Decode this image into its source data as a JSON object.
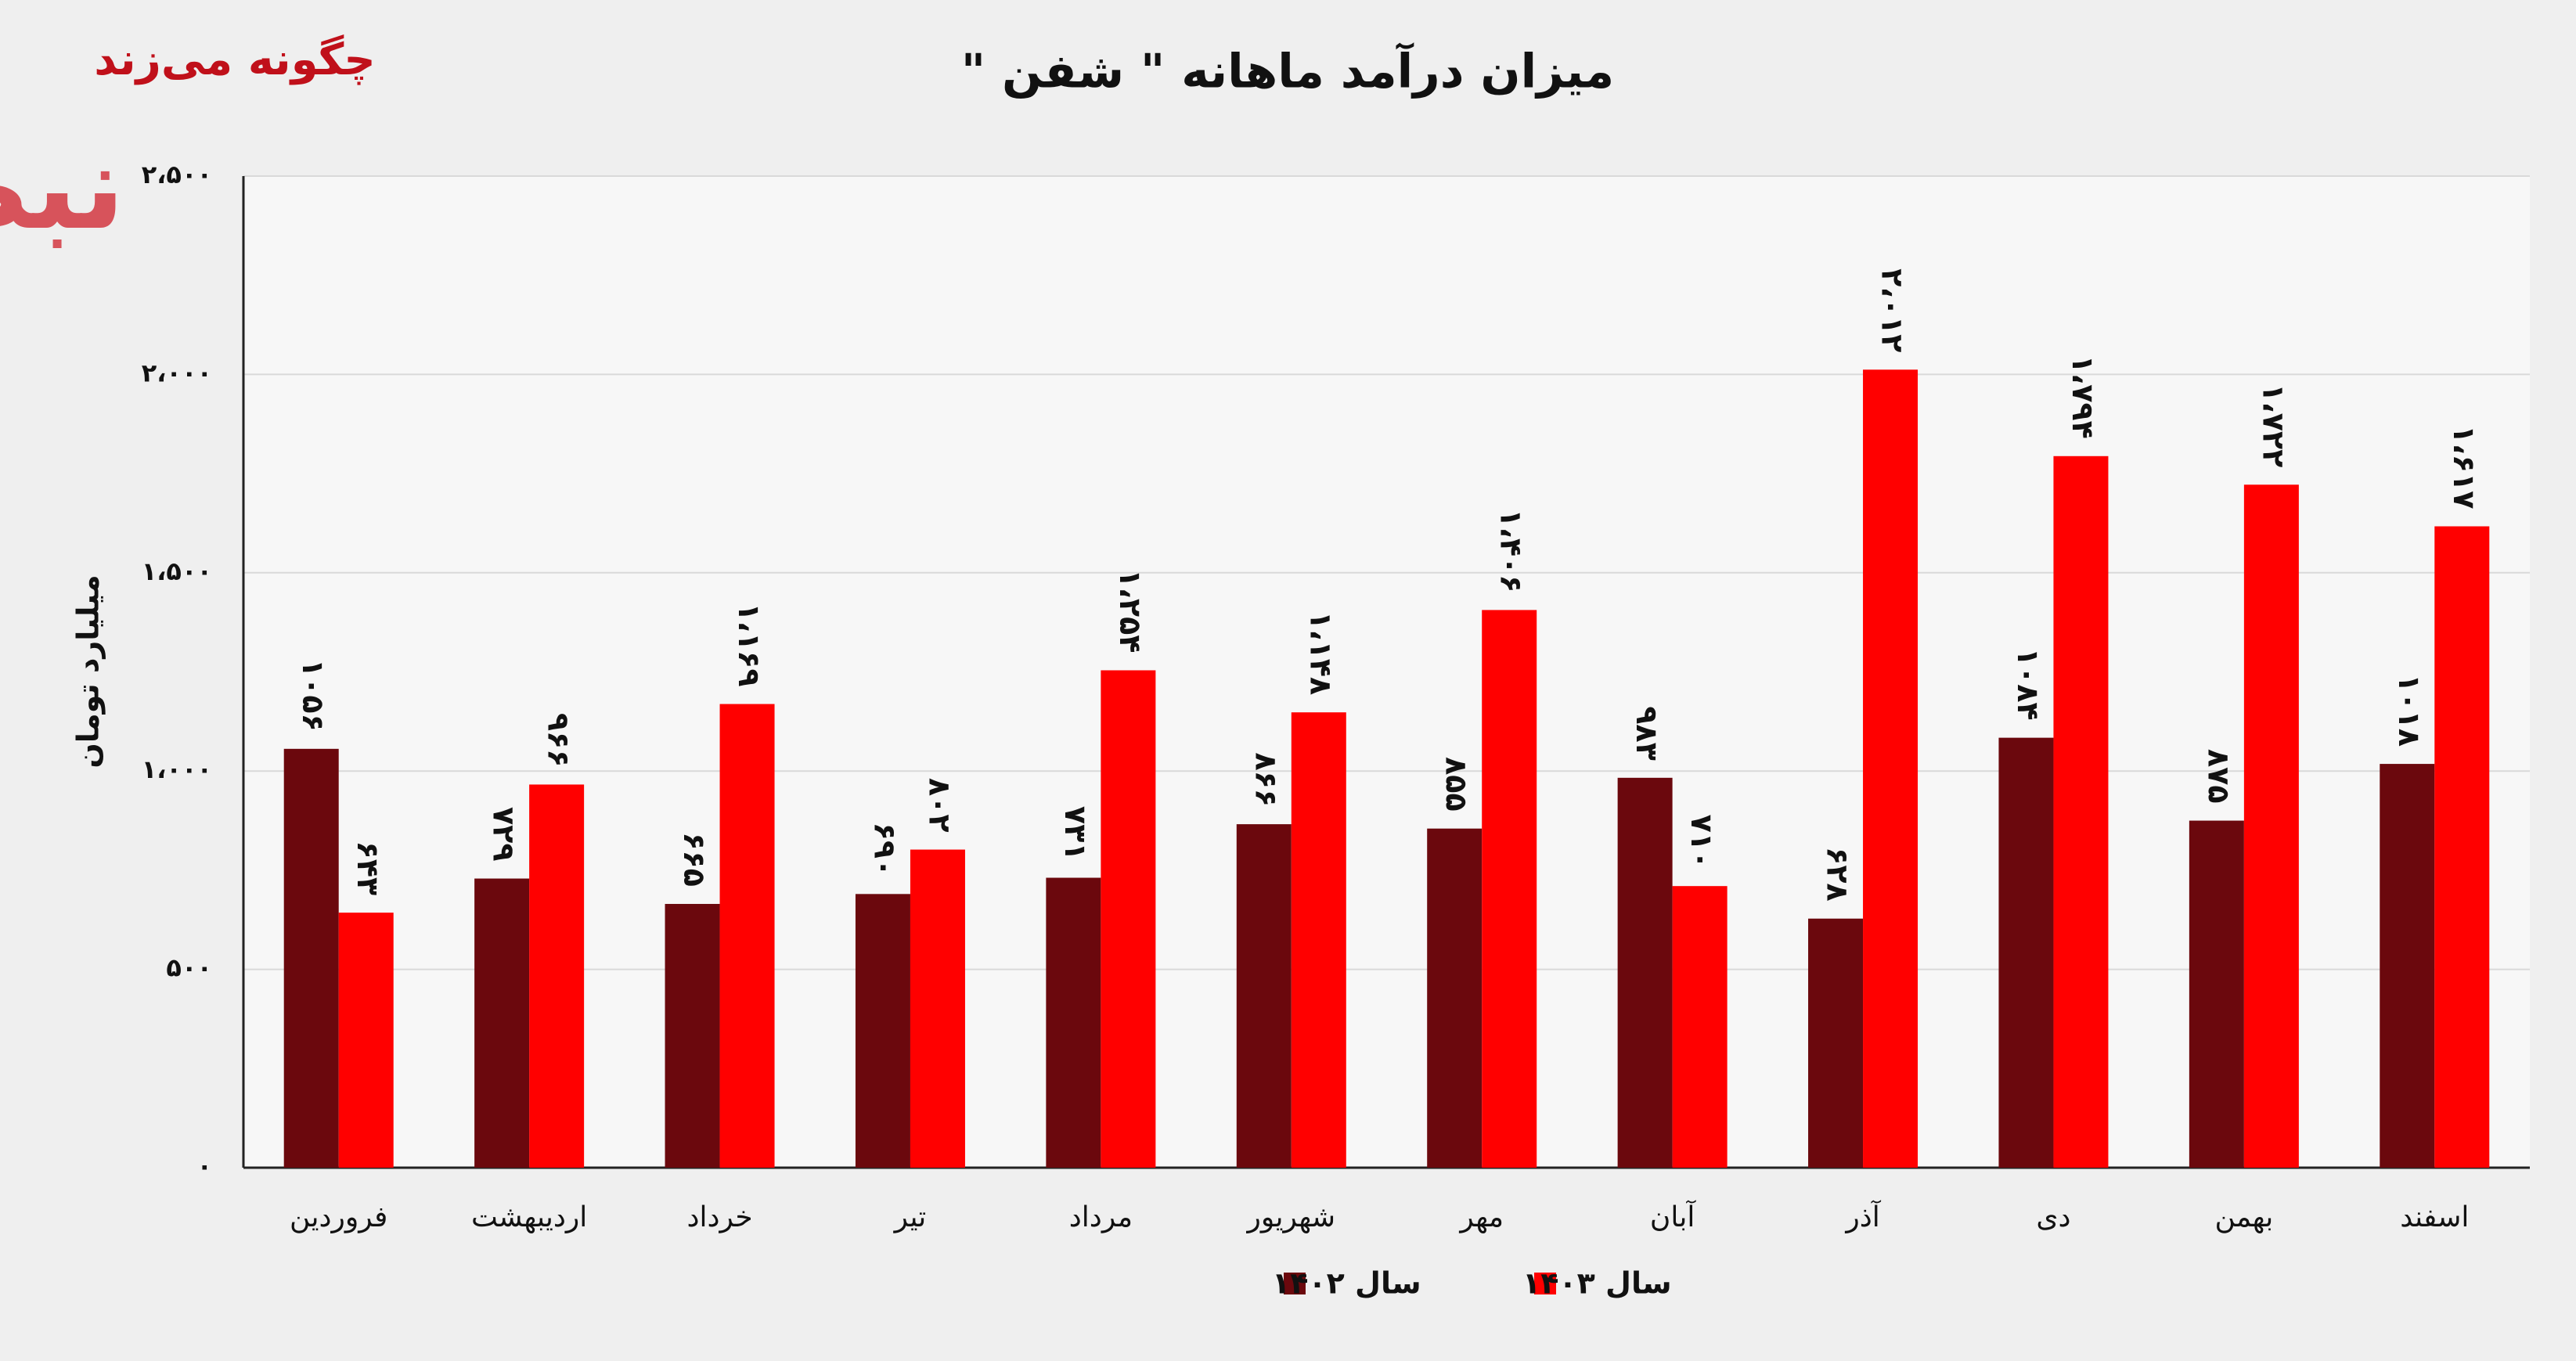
{
  "chart_data": {
    "type": "bar",
    "title": "میزان درآمد ماهانه \" شفن \"",
    "y_label": "میلیارد تومان",
    "logo": {
      "tagline": "چگونه می‌زند",
      "name": "نبض بازار"
    },
    "categories": [
      "فروردین",
      "اردیبهشت",
      "خرداد",
      "تیر",
      "مرداد",
      "شهریور",
      "مهر",
      "آبان",
      "آذر",
      "دی",
      "بهمن",
      "اسفند"
    ],
    "series": [
      {
        "name": "سال ۱۴۰۲",
        "color": "#6b080d",
        "values": [
          1056,
          729,
          665,
          690,
          731,
          866,
          855,
          983,
          628,
          1084,
          875,
          1018
        ],
        "value_labels": [
          "۱۰۵۶",
          "۷۲۹",
          "۶۶۵",
          "۶۹۰",
          "۷۳۱",
          "۸۶۶",
          "۸۵۵",
          "۹۸۳",
          "۶۲۸",
          "۱۰۸۴",
          "۸۷۵",
          "۱۰۱۸"
        ]
      },
      {
        "name": "سال ۱۴۰۳",
        "color": "#ff0000",
        "values": [
          643,
          966,
          1169,
          802,
          1254,
          1148,
          1406,
          710,
          2012,
          1794,
          1722,
          1617
        ],
        "value_labels": [
          "۶۴۳",
          "۹۶۶",
          "۱،۱۶۹",
          "۸۰۲",
          "۱،۲۵۴",
          "۱،۱۴۸",
          "۱،۴۰۶",
          "۷۱۰",
          "۲،۰۱۲",
          "۱،۷۹۴",
          "۱،۷۲۲",
          "۱،۶۱۷"
        ]
      }
    ],
    "ylim": [
      0,
      2500
    ],
    "yticks": [
      {
        "value": 0,
        "label": "۰"
      },
      {
        "value": 500,
        "label": "۵۰۰"
      },
      {
        "value": 1000,
        "label": "۱،۰۰۰"
      },
      {
        "value": 1500,
        "label": "۱،۵۰۰"
      },
      {
        "value": 2000,
        "label": "۲،۰۰۰"
      },
      {
        "value": 2500,
        "label": "۲،۵۰۰"
      }
    ],
    "grid": true
  }
}
